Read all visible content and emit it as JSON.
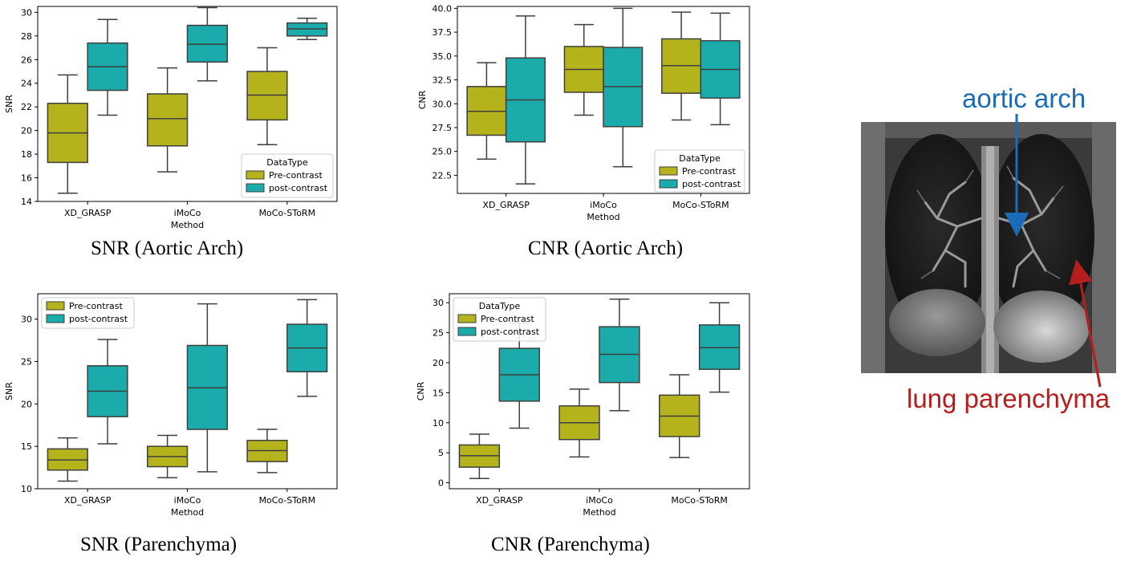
{
  "chart_data": [
    {
      "type": "box",
      "xlabel": "Method",
      "ylabel": "SNR",
      "ylim": [
        14,
        30.5
      ],
      "yticks": [
        14,
        16,
        18,
        20,
        22,
        24,
        26,
        28,
        30
      ],
      "categories": [
        "XD_GRASP",
        "iMoCo",
        "MoCo-SToRM"
      ],
      "legend": {
        "title": "DataType",
        "position": "lower-right",
        "entries": [
          "Pre-contrast",
          "post-contrast"
        ]
      },
      "series": [
        {
          "name": "Pre-contrast",
          "color": "#b5b31c",
          "boxes": [
            {
              "min": 14.7,
              "q1": 17.3,
              "median": 19.8,
              "q3": 22.3,
              "max": 24.7
            },
            {
              "min": 16.5,
              "q1": 18.7,
              "median": 21.0,
              "q3": 23.1,
              "max": 25.3
            },
            {
              "min": 18.8,
              "q1": 20.9,
              "median": 23.0,
              "q3": 25.0,
              "max": 27.0
            }
          ]
        },
        {
          "name": "post-contrast",
          "color": "#1aabaa",
          "boxes": [
            {
              "min": 21.3,
              "q1": 23.4,
              "median": 25.4,
              "q3": 27.4,
              "max": 29.4
            },
            {
              "min": 24.2,
              "q1": 25.8,
              "median": 27.3,
              "q3": 28.9,
              "max": 30.4
            },
            {
              "min": 27.7,
              "q1": 28.0,
              "median": 28.6,
              "q3": 29.1,
              "max": 29.5
            }
          ]
        }
      ]
    },
    {
      "type": "box",
      "xlabel": "Method",
      "ylabel": "CNR",
      "ylim": [
        20.6,
        40.2
      ],
      "yticks": [
        22.5,
        25.0,
        27.5,
        30.0,
        32.5,
        35.0,
        37.5,
        40.0
      ],
      "categories": [
        "XD_GRASP",
        "iMoCo",
        "MoCo-SToRM"
      ],
      "legend": {
        "title": "DataType",
        "position": "lower-right",
        "entries": [
          "Pre-contrast",
          "post-contrast"
        ]
      },
      "series": [
        {
          "name": "Pre-contrast",
          "color": "#b5b31c",
          "boxes": [
            {
              "min": 24.2,
              "q1": 26.7,
              "median": 29.2,
              "q3": 31.8,
              "max": 34.3
            },
            {
              "min": 28.8,
              "q1": 31.2,
              "median": 33.6,
              "q3": 36.0,
              "max": 38.3
            },
            {
              "min": 28.3,
              "q1": 31.1,
              "median": 34.0,
              "q3": 36.8,
              "max": 39.6
            }
          ]
        },
        {
          "name": "post-contrast",
          "color": "#1aabaa",
          "boxes": [
            {
              "min": 21.6,
              "q1": 26.0,
              "median": 30.4,
              "q3": 34.8,
              "max": 39.2
            },
            {
              "min": 23.4,
              "q1": 27.6,
              "median": 31.8,
              "q3": 35.9,
              "max": 40.0
            },
            {
              "min": 27.8,
              "q1": 30.6,
              "median": 33.6,
              "q3": 36.6,
              "max": 39.5
            }
          ]
        }
      ]
    },
    {
      "type": "box",
      "xlabel": "Method",
      "ylabel": "SNR",
      "ylim": [
        10,
        33
      ],
      "yticks": [
        10,
        15,
        20,
        25,
        30
      ],
      "categories": [
        "XD_GRASP",
        "iMoCo",
        "MoCo-SToRM"
      ],
      "legend": {
        "title": "",
        "position": "upper-left",
        "entries": [
          "Pre-contrast",
          "post-contrast"
        ]
      },
      "series": [
        {
          "name": "Pre-contrast",
          "color": "#b5b31c",
          "boxes": [
            {
              "min": 10.9,
              "q1": 12.2,
              "median": 13.4,
              "q3": 14.7,
              "max": 16.0
            },
            {
              "min": 11.3,
              "q1": 12.6,
              "median": 13.8,
              "q3": 15.0,
              "max": 16.3
            },
            {
              "min": 11.9,
              "q1": 13.2,
              "median": 14.5,
              "q3": 15.7,
              "max": 17.0
            }
          ]
        },
        {
          "name": "post-contrast",
          "color": "#1aabaa",
          "boxes": [
            {
              "min": 15.3,
              "q1": 18.5,
              "median": 21.5,
              "q3": 24.5,
              "max": 27.6
            },
            {
              "min": 12.0,
              "q1": 17.0,
              "median": 21.9,
              "q3": 26.9,
              "max": 31.8
            },
            {
              "min": 20.9,
              "q1": 23.8,
              "median": 26.6,
              "q3": 29.4,
              "max": 32.3
            }
          ]
        }
      ]
    },
    {
      "type": "box",
      "xlabel": "Method",
      "ylabel": "CNR",
      "ylim": [
        -1,
        31.5
      ],
      "yticks": [
        0,
        5,
        10,
        15,
        20,
        25,
        30
      ],
      "categories": [
        "XD_GRASP",
        "iMoCo",
        "MoCo-SToRM"
      ],
      "legend": {
        "title": "DataType",
        "position": "upper-left",
        "entries": [
          "Pre-contrast",
          "post-contrast"
        ]
      },
      "series": [
        {
          "name": "Pre-contrast",
          "color": "#b5b31c",
          "boxes": [
            {
              "min": 0.7,
              "q1": 2.6,
              "median": 4.5,
              "q3": 6.3,
              "max": 8.1
            },
            {
              "min": 4.3,
              "q1": 7.2,
              "median": 10.0,
              "q3": 12.8,
              "max": 15.6
            },
            {
              "min": 4.2,
              "q1": 7.7,
              "median": 11.1,
              "q3": 14.6,
              "max": 18.0
            }
          ]
        },
        {
          "name": "post-contrast",
          "color": "#1aabaa",
          "boxes": [
            {
              "min": 9.1,
              "q1": 13.6,
              "median": 18.0,
              "q3": 22.4,
              "max": 26.6
            },
            {
              "min": 12.0,
              "q1": 16.7,
              "median": 21.4,
              "q3": 26.0,
              "max": 30.6
            },
            {
              "min": 15.1,
              "q1": 18.9,
              "median": 22.5,
              "q3": 26.3,
              "max": 30.0
            }
          ]
        }
      ]
    }
  ],
  "captions": {
    "snr_aortic": "SNR (Aortic Arch)",
    "cnr_aortic": "CNR (Aortic Arch)",
    "snr_parenchyma": "SNR (Parenchyma)",
    "cnr_parenchyma": "CNR (Parenchyma)"
  },
  "mri": {
    "label_aortic": "aortic arch",
    "label_lung": "lung parenchyma",
    "aortic_color": "#1a6bb8",
    "lung_color": "#b51e1e"
  }
}
